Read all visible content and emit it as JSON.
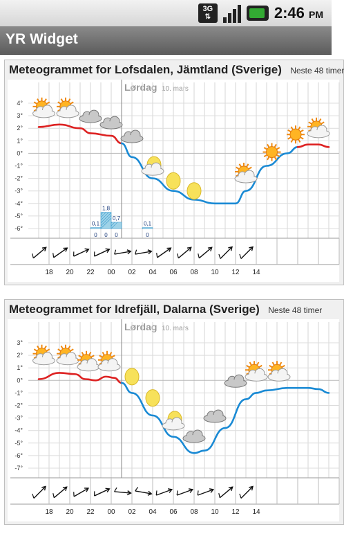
{
  "status_bar": {
    "network": "3G",
    "time": "2:46",
    "ampm": "PM"
  },
  "app": {
    "title": "YR Widget"
  },
  "panels": [
    {
      "title": "Meteogrammet for Lofsdalen, Jämtland (Sverige)",
      "subtitle": "Neste 48 timer",
      "day_label": "Lørdag",
      "date_label": "10. mars",
      "chart_data": {
        "type": "line",
        "y_ticks": [
          "4°",
          "3°",
          "2°",
          "1°",
          "0°",
          "-1°",
          "-2°",
          "-3°",
          "-4°",
          "-5°",
          "-6°"
        ],
        "x_ticks": [
          "18",
          "20",
          "22",
          "00",
          "02",
          "04",
          "06",
          "08",
          "10",
          "12",
          "14"
        ],
        "ylim": [
          -6,
          4
        ],
        "temperature_series": [
          {
            "name": "warm",
            "color": "#dd2222",
            "points": [
              [
                16,
                2.1
              ],
              [
                18,
                2.3
              ],
              [
                20,
                2.0
              ],
              [
                21,
                1.6
              ],
              [
                23,
                1.4
              ],
              [
                24,
                0.8
              ]
            ]
          },
          {
            "name": "cold",
            "color": "#1a8ad4",
            "points": [
              [
                24,
                0.8
              ],
              [
                25,
                -0.3
              ],
              [
                27,
                -2.0
              ],
              [
                29,
                -3.0
              ],
              [
                31,
                -3.7
              ],
              [
                33,
                -4.0
              ],
              [
                35,
                -4.0
              ],
              [
                36,
                -3.0
              ],
              [
                38,
                -1.0
              ],
              [
                40,
                0.0
              ],
              [
                41,
                0.5
              ]
            ]
          },
          {
            "name": "warm2",
            "color": "#dd2222",
            "points": [
              [
                41,
                0.5
              ],
              [
                42,
                0.7
              ],
              [
                43,
                0.7
              ],
              [
                44,
                0.5
              ]
            ]
          }
        ],
        "precipitation": [
          {
            "x": 21,
            "value": 0.1,
            "label": "0,1",
            "min": "0"
          },
          {
            "x": 22,
            "value": 1.8,
            "label": "1,8",
            "min": "0"
          },
          {
            "x": 23,
            "value": 0.7,
            "label": "0,7",
            "min": "0"
          },
          {
            "x": 26,
            "value": 0.1,
            "label": "0,1",
            "min": "0"
          }
        ],
        "symbols": [
          {
            "x": 16.5,
            "y": 3.4,
            "type": "sun-cloud"
          },
          {
            "x": 18.8,
            "y": 3.4,
            "type": "sun-cloud"
          },
          {
            "x": 21,
            "y": 3.0,
            "type": "cloud"
          },
          {
            "x": 23,
            "y": 2.5,
            "type": "cloud"
          },
          {
            "x": 25,
            "y": 1.4,
            "type": "cloud"
          },
          {
            "x": 27,
            "y": -1.2,
            "type": "moon-cloud"
          },
          {
            "x": 29,
            "y": -2.2,
            "type": "moon"
          },
          {
            "x": 31,
            "y": -3.0,
            "type": "moon"
          },
          {
            "x": 36,
            "y": -1.8,
            "type": "sun-cloud"
          },
          {
            "x": 38.5,
            "y": 0.1,
            "type": "sun"
          },
          {
            "x": 40.8,
            "y": 1.5,
            "type": "sun"
          },
          {
            "x": 43,
            "y": 1.8,
            "type": "sun-cloud"
          }
        ],
        "wind_arrows": [
          40,
          35,
          25,
          25,
          10,
          10,
          35,
          40,
          40,
          45,
          45
        ]
      }
    },
    {
      "title": "Meteogrammet for Idrefjäll, Dalarna (Sverige)",
      "subtitle": "Neste 48 timer",
      "day_label": "Lørdag",
      "date_label": "10. mars",
      "chart_data": {
        "type": "line",
        "y_ticks": [
          "3°",
          "2°",
          "1°",
          "0°",
          "-1°",
          "-2°",
          "-3°",
          "-4°",
          "-5°",
          "-6°",
          "-7°"
        ],
        "x_ticks": [
          "18",
          "20",
          "22",
          "00",
          "02",
          "04",
          "06",
          "08",
          "10",
          "12",
          "14"
        ],
        "ylim": [
          -7,
          3
        ],
        "temperature_series": [
          {
            "name": "warm",
            "color": "#dd2222",
            "points": [
              [
                16,
                0.1
              ],
              [
                18,
                0.6
              ],
              [
                19.5,
                0.5
              ],
              [
                20.5,
                0.1
              ],
              [
                21.5,
                0.0
              ],
              [
                22.5,
                0.3
              ],
              [
                23.3,
                0.2
              ],
              [
                24,
                -0.2
              ]
            ]
          },
          {
            "name": "cold",
            "color": "#1a8ad4",
            "points": [
              [
                24,
                -0.2
              ],
              [
                25,
                -1.0
              ],
              [
                27,
                -2.8
              ],
              [
                29,
                -4.5
              ],
              [
                31,
                -5.8
              ],
              [
                32,
                -5.6
              ],
              [
                34,
                -3.8
              ],
              [
                36,
                -1.5
              ],
              [
                37,
                -1.0
              ],
              [
                38,
                -0.8
              ],
              [
                40,
                -0.6
              ],
              [
                42,
                -0.6
              ],
              [
                43,
                -0.7
              ],
              [
                44,
                -1.0
              ]
            ]
          }
        ],
        "precipitation": [],
        "symbols": [
          {
            "x": 16.5,
            "y": 1.8,
            "type": "sun-cloud"
          },
          {
            "x": 18.8,
            "y": 1.8,
            "type": "sun-cloud"
          },
          {
            "x": 20.8,
            "y": 1.3,
            "type": "sun-cloud"
          },
          {
            "x": 22.8,
            "y": 1.3,
            "type": "sun-cloud"
          },
          {
            "x": 25,
            "y": 0.3,
            "type": "moon"
          },
          {
            "x": 27,
            "y": -1.4,
            "type": "moon"
          },
          {
            "x": 29,
            "y": -3.4,
            "type": "moon-cloud"
          },
          {
            "x": 31,
            "y": -4.4,
            "type": "cloud"
          },
          {
            "x": 33,
            "y": -2.8,
            "type": "cloud"
          },
          {
            "x": 35,
            "y": 0.0,
            "type": "cloud"
          },
          {
            "x": 37,
            "y": 0.5,
            "type": "sun-cloud"
          },
          {
            "x": 39.2,
            "y": 0.5,
            "type": "sun-cloud"
          }
        ],
        "wind_arrows": [
          45,
          40,
          30,
          25,
          -5,
          -10,
          20,
          20,
          20,
          40,
          45
        ]
      }
    }
  ]
}
